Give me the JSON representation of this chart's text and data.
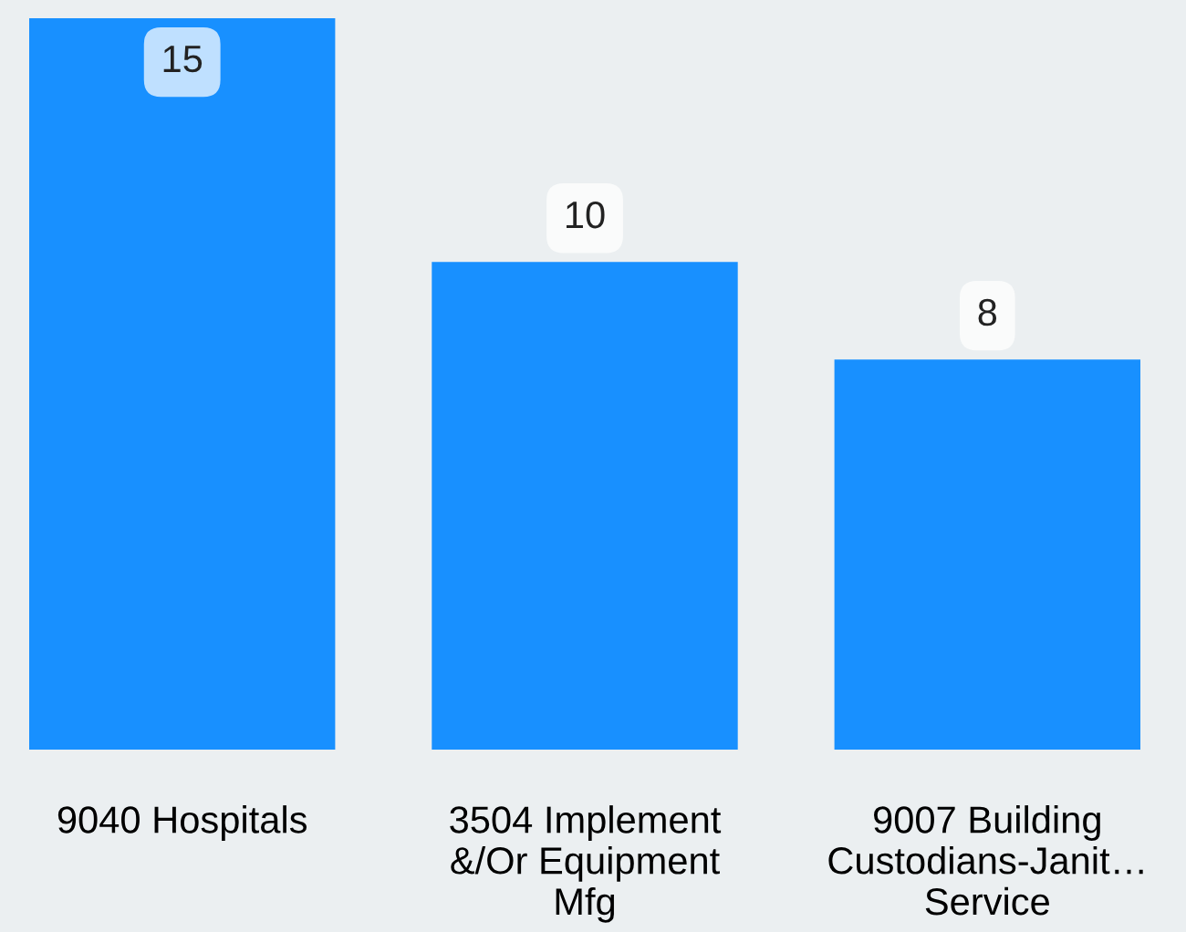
{
  "chart_data": {
    "type": "bar",
    "categories": [
      "9040 Hospitals",
      "3504 Implement &/Or Equipment Mfg",
      "9007 Building Custodians-Janit… Service"
    ],
    "values": [
      15,
      10,
      8
    ],
    "color": "#1890ff",
    "ylim": [
      0,
      15
    ],
    "tick_labels": "x",
    "data_labels": true,
    "grid": false
  }
}
